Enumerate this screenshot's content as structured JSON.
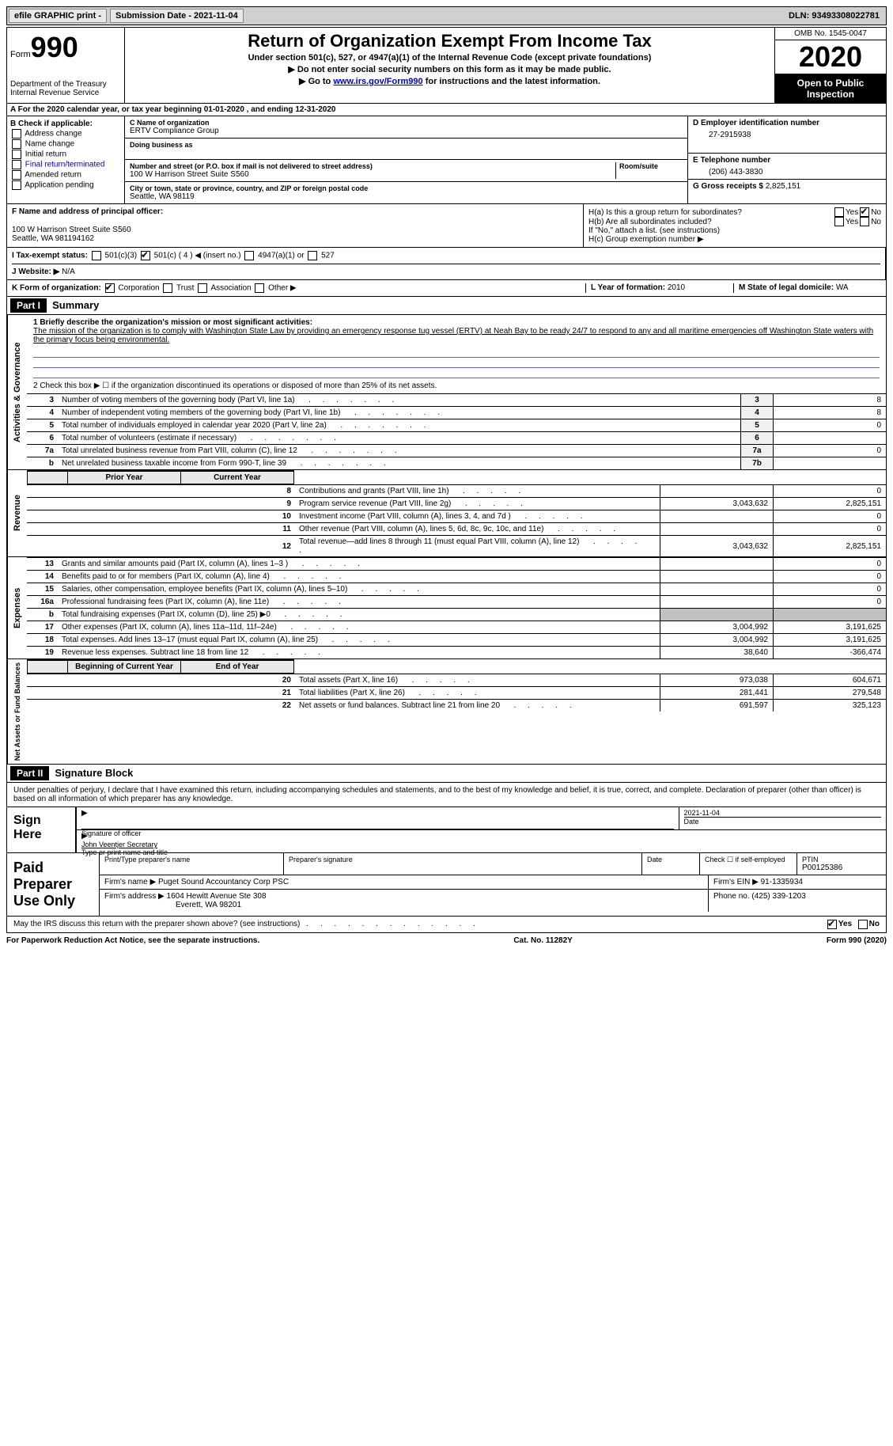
{
  "topbar": {
    "efile": "efile GRAPHIC print -",
    "submission": "Submission Date - 2021-11-04",
    "dln": "DLN: 93493308022781"
  },
  "header": {
    "form_label": "Form",
    "form_number": "990",
    "dept": "Department of the Treasury\nInternal Revenue Service",
    "title": "Return of Organization Exempt From Income Tax",
    "subtitle": "Under section 501(c), 527, or 4947(a)(1) of the Internal Revenue Code (except private foundations)",
    "note1": "▶ Do not enter social security numbers on this form as it may be made public.",
    "note2_pre": "▶ Go to ",
    "note2_link": "www.irs.gov/Form990",
    "note2_post": " for instructions and the latest information.",
    "omb": "OMB No. 1545-0047",
    "year": "2020",
    "open": "Open to Public Inspection"
  },
  "row_a": "A For the 2020 calendar year, or tax year beginning 01-01-2020   , and ending 12-31-2020",
  "section_b": {
    "title": "B Check if applicable:",
    "items": [
      "Address change",
      "Name change",
      "Initial return",
      "Final return/terminated",
      "Amended return",
      "Application pending"
    ]
  },
  "section_c": {
    "name_label": "C Name of organization",
    "name": "ERTV Compliance Group",
    "dba_label": "Doing business as",
    "dba": "",
    "street_label": "Number and street (or P.O. box if mail is not delivered to street address)",
    "room_label": "Room/suite",
    "street": "100 W Harrison Street Suite S560",
    "city_label": "City or town, state or province, country, and ZIP or foreign postal code",
    "city": "Seattle, WA  98119"
  },
  "section_d": {
    "label": "D Employer identification number",
    "value": "27-2915938"
  },
  "section_e": {
    "label": "E Telephone number",
    "value": "(206) 443-3830"
  },
  "section_g": {
    "label": "G Gross receipts $",
    "value": "2,825,151"
  },
  "section_f": {
    "label": "F Name and address of principal officer:",
    "line1": "",
    "line2": "100 W Harrison Street Suite S560",
    "line3": "Seattle, WA  981194162"
  },
  "section_h": {
    "ha": "H(a)  Is this a group return for subordinates?",
    "hb": "H(b)  Are all subordinates included?",
    "hb_note": "If \"No,\" attach a list. (see instructions)",
    "hc": "H(c)  Group exemption number ▶"
  },
  "section_i": {
    "label": "I   Tax-exempt status:",
    "opts": [
      "501(c)(3)",
      "501(c) ( 4 ) ◀ (insert no.)",
      "4947(a)(1) or",
      "527"
    ]
  },
  "section_j": {
    "label": "J   Website: ▶",
    "value": "N/A"
  },
  "section_k": {
    "label": "K Form of organization:",
    "opts": [
      "Corporation",
      "Trust",
      "Association",
      "Other ▶"
    ]
  },
  "section_l": {
    "label": "L Year of formation:",
    "value": "2010"
  },
  "section_m": {
    "label": "M State of legal domicile:",
    "value": "WA"
  },
  "part1": {
    "header": "Part I",
    "title": "Summary",
    "line1_label": "1   Briefly describe the organization's mission or most significant activities:",
    "mission": "The mission of the organization is to comply with Washington State Law by providing an emergency response tug vessel (ERTV) at Neah Bay to be ready 24/7 to respond to any and all maritime emergencies off Washington State waters with the primary focus being environmental.",
    "line2": "2   Check this box ▶ ☐  if the organization discontinued its operations or disposed of more than 25% of its net assets.",
    "prior_year": "Prior Year",
    "current_year": "Current Year",
    "beg_year": "Beginning of Current Year",
    "end_year": "End of Year",
    "rows_gov": [
      {
        "n": "3",
        "label": "Number of voting members of the governing body (Part VI, line 1a)",
        "box": "3",
        "val": "8"
      },
      {
        "n": "4",
        "label": "Number of independent voting members of the governing body (Part VI, line 1b)",
        "box": "4",
        "val": "8"
      },
      {
        "n": "5",
        "label": "Total number of individuals employed in calendar year 2020 (Part V, line 2a)",
        "box": "5",
        "val": "0"
      },
      {
        "n": "6",
        "label": "Total number of volunteers (estimate if necessary)",
        "box": "6",
        "val": ""
      },
      {
        "n": "7a",
        "label": "Total unrelated business revenue from Part VIII, column (C), line 12",
        "box": "7a",
        "val": "0"
      },
      {
        "n": "b",
        "label": "Net unrelated business taxable income from Form 990-T, line 39",
        "box": "7b",
        "val": ""
      }
    ],
    "rows_rev": [
      {
        "n": "8",
        "label": "Contributions and grants (Part VIII, line 1h)",
        "py": "",
        "cy": "0"
      },
      {
        "n": "9",
        "label": "Program service revenue (Part VIII, line 2g)",
        "py": "3,043,632",
        "cy": "2,825,151"
      },
      {
        "n": "10",
        "label": "Investment income (Part VIII, column (A), lines 3, 4, and 7d )",
        "py": "",
        "cy": "0"
      },
      {
        "n": "11",
        "label": "Other revenue (Part VIII, column (A), lines 5, 6d, 8c, 9c, 10c, and 11e)",
        "py": "",
        "cy": "0"
      },
      {
        "n": "12",
        "label": "Total revenue—add lines 8 through 11 (must equal Part VIII, column (A), line 12)",
        "py": "3,043,632",
        "cy": "2,825,151"
      }
    ],
    "rows_exp": [
      {
        "n": "13",
        "label": "Grants and similar amounts paid (Part IX, column (A), lines 1–3 )",
        "py": "",
        "cy": "0"
      },
      {
        "n": "14",
        "label": "Benefits paid to or for members (Part IX, column (A), line 4)",
        "py": "",
        "cy": "0"
      },
      {
        "n": "15",
        "label": "Salaries, other compensation, employee benefits (Part IX, column (A), lines 5–10)",
        "py": "",
        "cy": "0"
      },
      {
        "n": "16a",
        "label": "Professional fundraising fees (Part IX, column (A), line 11e)",
        "py": "",
        "cy": "0"
      },
      {
        "n": "b",
        "label": "Total fundraising expenses (Part IX, column (D), line 25) ▶0",
        "py": "shaded",
        "cy": "shaded"
      },
      {
        "n": "17",
        "label": "Other expenses (Part IX, column (A), lines 11a–11d, 11f–24e)",
        "py": "3,004,992",
        "cy": "3,191,625"
      },
      {
        "n": "18",
        "label": "Total expenses. Add lines 13–17 (must equal Part IX, column (A), line 25)",
        "py": "3,004,992",
        "cy": "3,191,625"
      },
      {
        "n": "19",
        "label": "Revenue less expenses. Subtract line 18 from line 12",
        "py": "38,640",
        "cy": "-366,474"
      }
    ],
    "rows_net": [
      {
        "n": "20",
        "label": "Total assets (Part X, line 16)",
        "py": "973,038",
        "cy": "604,671"
      },
      {
        "n": "21",
        "label": "Total liabilities (Part X, line 26)",
        "py": "281,441",
        "cy": "279,548"
      },
      {
        "n": "22",
        "label": "Net assets or fund balances. Subtract line 21 from line 20",
        "py": "691,597",
        "cy": "325,123"
      }
    ],
    "sides": {
      "gov": "Activities & Governance",
      "rev": "Revenue",
      "exp": "Expenses",
      "net": "Net Assets or Fund Balances"
    }
  },
  "part2": {
    "header": "Part II",
    "title": "Signature Block",
    "declaration": "Under penalties of perjury, I declare that I have examined this return, including accompanying schedules and statements, and to the best of my knowledge and belief, it is true, correct, and complete. Declaration of preparer (other than officer) is based on all information of which preparer has any knowledge.",
    "sign_here": "Sign Here",
    "sig_officer": "Signature of officer",
    "sig_date": "2021-11-04",
    "date_label": "Date",
    "officer_name": "John Veentjer Secretary",
    "type_name": "Type or print name and title"
  },
  "preparer": {
    "title": "Paid Preparer Use Only",
    "print_name_label": "Print/Type preparer's name",
    "print_name": "",
    "sig_label": "Preparer's signature",
    "date_label": "Date",
    "check_label": "Check ☐ if self-employed",
    "ptin_label": "PTIN",
    "ptin": "P00125386",
    "firm_name_label": "Firm's name    ▶",
    "firm_name": "Puget Sound Accountancy Corp PSC",
    "firm_ein_label": "Firm's EIN ▶",
    "firm_ein": "91-1335934",
    "firm_addr_label": "Firm's address ▶",
    "firm_addr1": "1604 Hewitt Avenue Ste 308",
    "firm_addr2": "Everett, WA  98201",
    "phone_label": "Phone no.",
    "phone": "(425) 339-1203"
  },
  "discuss": "May the IRS discuss this return with the preparer shown above? (see instructions)",
  "footer": {
    "left": "For Paperwork Reduction Act Notice, see the separate instructions.",
    "center": "Cat. No. 11282Y",
    "right": "Form 990 (2020)"
  },
  "yes": "Yes",
  "no": "No"
}
